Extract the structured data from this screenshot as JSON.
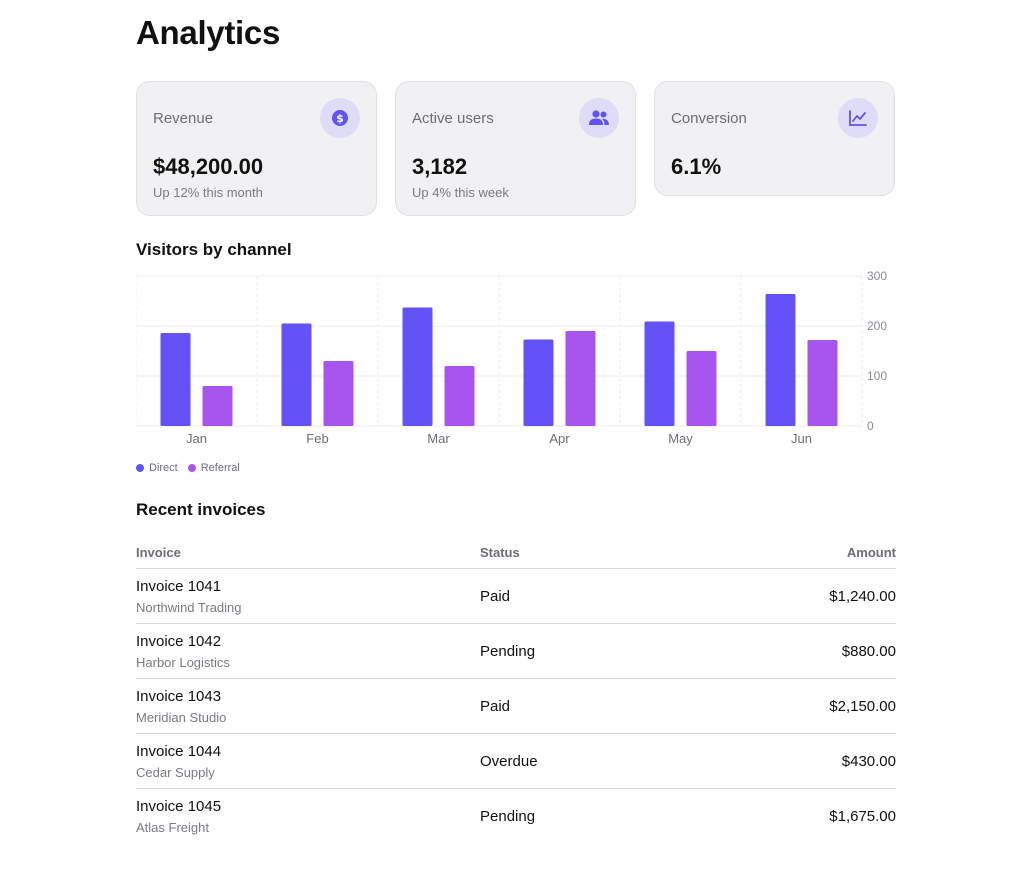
{
  "page": {
    "title": "Analytics"
  },
  "cards": [
    {
      "label": "Revenue",
      "value": "$48,200.00",
      "sub": "Up 12% this month",
      "icon": "dollar-icon"
    },
    {
      "label": "Active users",
      "value": "3,182",
      "sub": "Up 4% this week",
      "icon": "users-icon"
    },
    {
      "label": "Conversion",
      "value": "6.1%",
      "sub": "",
      "icon": "trend-chart-icon"
    }
  ],
  "chart_section": {
    "title": "Visitors by channel"
  },
  "chart_data": {
    "type": "bar",
    "categories": [
      "Jan",
      "Feb",
      "Mar",
      "Apr",
      "May",
      "Jun"
    ],
    "series": [
      {
        "name": "Direct",
        "values": [
          186,
          205,
          237,
          173,
          209,
          264
        ],
        "color": "#6352f5"
      },
      {
        "name": "Referral",
        "values": [
          80,
          130,
          120,
          190,
          150,
          172
        ],
        "color": "#a855f0"
      }
    ],
    "ylim": [
      0,
      300
    ],
    "yticks": [
      0,
      100,
      200,
      300
    ],
    "y_axis_side": "right",
    "grid": true,
    "legend_position": "bottom-left"
  },
  "invoices_section": {
    "title": "Recent invoices"
  },
  "invoices": {
    "headers": {
      "invoice": "Invoice",
      "status": "Status",
      "amount": "Amount"
    },
    "rows": [
      {
        "title": "Invoice 1041",
        "customer": "Northwind Trading",
        "status": "Paid",
        "amount": "$1,240.00"
      },
      {
        "title": "Invoice 1042",
        "customer": "Harbor Logistics",
        "status": "Pending",
        "amount": "$880.00"
      },
      {
        "title": "Invoice 1043",
        "customer": "Meridian Studio",
        "status": "Paid",
        "amount": "$2,150.00"
      },
      {
        "title": "Invoice 1044",
        "customer": "Cedar Supply",
        "status": "Overdue",
        "amount": "$430.00"
      },
      {
        "title": "Invoice 1045",
        "customer": "Atlas Freight",
        "status": "Pending",
        "amount": "$1,675.00"
      }
    ]
  },
  "colors": {
    "accent": "#6352f5",
    "accent_secondary": "#a855f0",
    "icon_bg": "#dedcf6"
  }
}
